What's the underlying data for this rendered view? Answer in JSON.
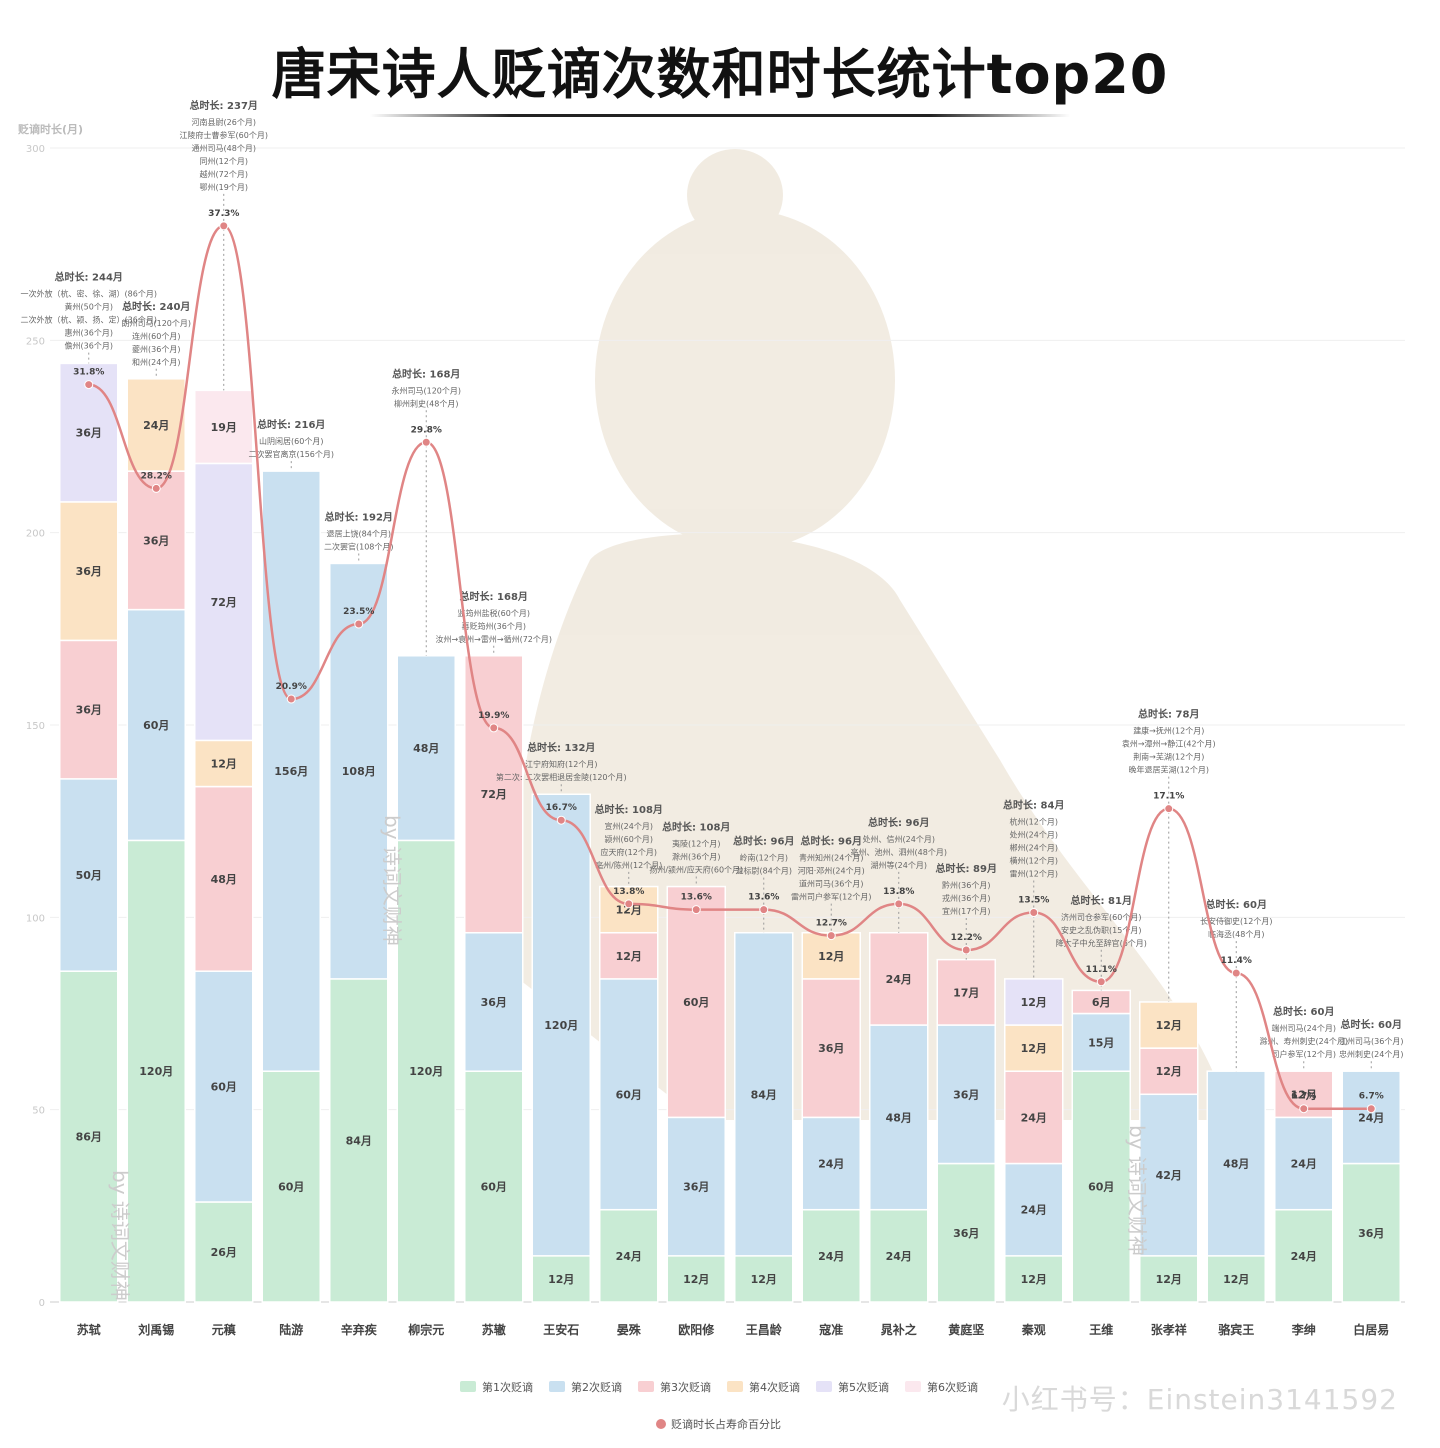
{
  "title": "唐宋诗人贬谪次数和时长统计top20",
  "watermark": "小红书号：Einstein3141592",
  "chart_data": {
    "type": "bar",
    "stacked": true,
    "ylabel": "贬谪时长(月)",
    "ylim": [
      0,
      300
    ],
    "yticks": [
      0,
      50,
      100,
      150,
      200,
      250,
      300
    ],
    "grid": true,
    "legend_position": "bottom",
    "categories": [
      "苏轼",
      "刘禹锡",
      "元稹",
      "陆游",
      "辛弃疾",
      "柳宗元",
      "苏辙",
      "王安石",
      "晏殊",
      "欧阳修",
      "王昌龄",
      "寇准",
      "晁补之",
      "黄庭坚",
      "秦观",
      "王维",
      "张孝祥",
      "骆宾王",
      "李绅",
      "白居易"
    ],
    "series": [
      {
        "name": "第1次贬谪",
        "color": "#c9ebd5",
        "values": [
          86,
          120,
          26,
          60,
          84,
          120,
          60,
          12,
          24,
          12,
          12,
          24,
          24,
          36,
          12,
          60,
          12,
          12,
          24,
          36
        ]
      },
      {
        "name": "第2次贬谪",
        "color": "#c9e0f0",
        "values": [
          50,
          60,
          60,
          156,
          108,
          48,
          36,
          120,
          60,
          36,
          84,
          24,
          48,
          36,
          24,
          15,
          42,
          48,
          24,
          24
        ]
      },
      {
        "name": "第3次贬谪",
        "color": "#f8cfd2",
        "values": [
          36,
          36,
          48,
          0,
          0,
          0,
          72,
          0,
          12,
          60,
          0,
          36,
          24,
          17,
          24,
          6,
          12,
          0,
          12,
          0
        ]
      },
      {
        "name": "第4次贬谪",
        "color": "#fbe3c4",
        "values": [
          36,
          24,
          12,
          0,
          0,
          0,
          0,
          0,
          12,
          0,
          0,
          12,
          0,
          0,
          12,
          0,
          12,
          0,
          0,
          0
        ]
      },
      {
        "name": "第5次贬谪",
        "color": "#e5e2f7",
        "values": [
          36,
          0,
          72,
          0,
          0,
          0,
          0,
          0,
          0,
          0,
          0,
          0,
          0,
          0,
          12,
          0,
          0,
          0,
          0,
          0
        ]
      },
      {
        "name": "第6次贬谪",
        "color": "#fbe8ee",
        "values": [
          0,
          0,
          19,
          0,
          0,
          0,
          0,
          0,
          0,
          0,
          0,
          0,
          0,
          0,
          0,
          0,
          0,
          0,
          0,
          0
        ]
      }
    ],
    "line_series": {
      "name": "贬谪时长占寿命百分比",
      "color": "#e08585",
      "values": [
        31.8,
        28.2,
        37.3,
        20.9,
        23.5,
        29.8,
        19.9,
        16.7,
        13.8,
        13.6,
        13.6,
        12.7,
        13.8,
        12.2,
        13.5,
        11.1,
        17.1,
        11.4,
        6.7,
        6.7
      ],
      "labels": [
        "31.8%",
        "28.2%",
        "37.3%",
        "20.9%",
        "23.5%",
        "29.8%",
        "19.9%",
        "16.7%",
        "13.8%",
        "13.6%",
        "13.6%",
        "12.7%",
        "13.8%",
        "12.2%",
        "13.5%",
        "11.1%",
        "17.1%",
        "11.4%",
        "6.7%",
        "6.7%"
      ]
    },
    "annotations": [
      {
        "total": "总时长: 244月",
        "details": [
          "一次外放（杭、密、徐、湖）(86个月)",
          "黄州(50个月)",
          "二次外放（杭、颍、扬、定）(36个月)",
          "惠州(36个月)",
          "儋州(36个月)"
        ]
      },
      {
        "total": "总时长: 240月",
        "details": [
          "朗州司马(120个月)",
          "连州(60个月)",
          "夔州(36个月)",
          "和州(24个月)"
        ]
      },
      {
        "total": "总时长: 237月",
        "details": [
          "河南县尉(26个月)",
          "江陵府士曹参军(60个月)",
          "通州司马(48个月)",
          "同州(12个月)",
          "越州(72个月)",
          "鄂州(19个月)"
        ]
      },
      {
        "total": "总时长: 216月",
        "details": [
          "山阴闲居(60个月)",
          "二次罢官离京(156个月)"
        ]
      },
      {
        "total": "总时长: 192月",
        "details": [
          "退居上饶(84个月)",
          "二次罢官(108个月)"
        ]
      },
      {
        "total": "总时长: 168月",
        "details": [
          "永州司马(120个月)",
          "柳州刺史(48个月)"
        ]
      },
      {
        "total": "总时长: 168月",
        "details": [
          "监筠州盐税(60个月)",
          "再贬筠州(36个月)",
          "汝州→袁州→雷州→循州(72个月)"
        ]
      },
      {
        "total": "总时长: 132月",
        "details": [
          "江宁府知府(12个月)",
          "第二次: 二次罢相退居金陵(120个月)"
        ]
      },
      {
        "total": "总时长: 108月",
        "details": [
          "宣州(24个月)",
          "颍州(60个月)",
          "应天府(12个月)",
          "亳州/陈州(12个月)"
        ]
      },
      {
        "total": "总时长: 108月",
        "details": [
          "夷陵(12个月)",
          "滁州(36个月)",
          "扬州/颍州/应天府(60个月)"
        ]
      },
      {
        "total": "总时长: 96月",
        "details": [
          "岭南(12个月)",
          "龙标尉(84个月)"
        ]
      },
      {
        "total": "总时长: 96月",
        "details": [
          "青州知州(24个月)",
          "河阳·邓州(24个月)",
          "道州司马(36个月)",
          "雷州司户参军(12个月)"
        ]
      },
      {
        "total": "总时长: 96月",
        "details": [
          "处州、信州(24个月)",
          "亳州、池州、泗州(48个月)",
          "湖州等(24个月)"
        ]
      },
      {
        "total": "总时长: 89月",
        "details": [
          "黔州(36个月)",
          "戎州(36个月)",
          "宜州(17个月)"
        ]
      },
      {
        "total": "总时长: 84月",
        "details": [
          "杭州(12个月)",
          "处州(24个月)",
          "郴州(24个月)",
          "横州(12个月)",
          "雷州(12个月)"
        ]
      },
      {
        "total": "总时长: 81月",
        "details": [
          "济州司仓参军(60个月)",
          "安史之乱伪职(15个月)",
          "降太子中允至辞官(6个月)"
        ]
      },
      {
        "total": "总时长: 78月",
        "details": [
          "建康→抚州(12个月)",
          "袁州→潭州→静江(42个月)",
          "荆南→芜湖(12个月)",
          "晚年退居芜湖(12个月)"
        ]
      },
      {
        "total": "总时长: 60月",
        "details": [
          "长安侍御史(12个月)",
          "临海丞(48个月)"
        ]
      },
      {
        "total": "总时长: 60月",
        "details": [
          "端州司马(24个月)",
          "滁州、寿州刺史(24个月)",
          "司户参军(12个月)"
        ]
      },
      {
        "total": "总时长: 60月",
        "details": [
          "江州司马(36个月)",
          "忠州刺史(24个月)"
        ]
      }
    ],
    "side_watermark": "by 诗词文财神"
  }
}
